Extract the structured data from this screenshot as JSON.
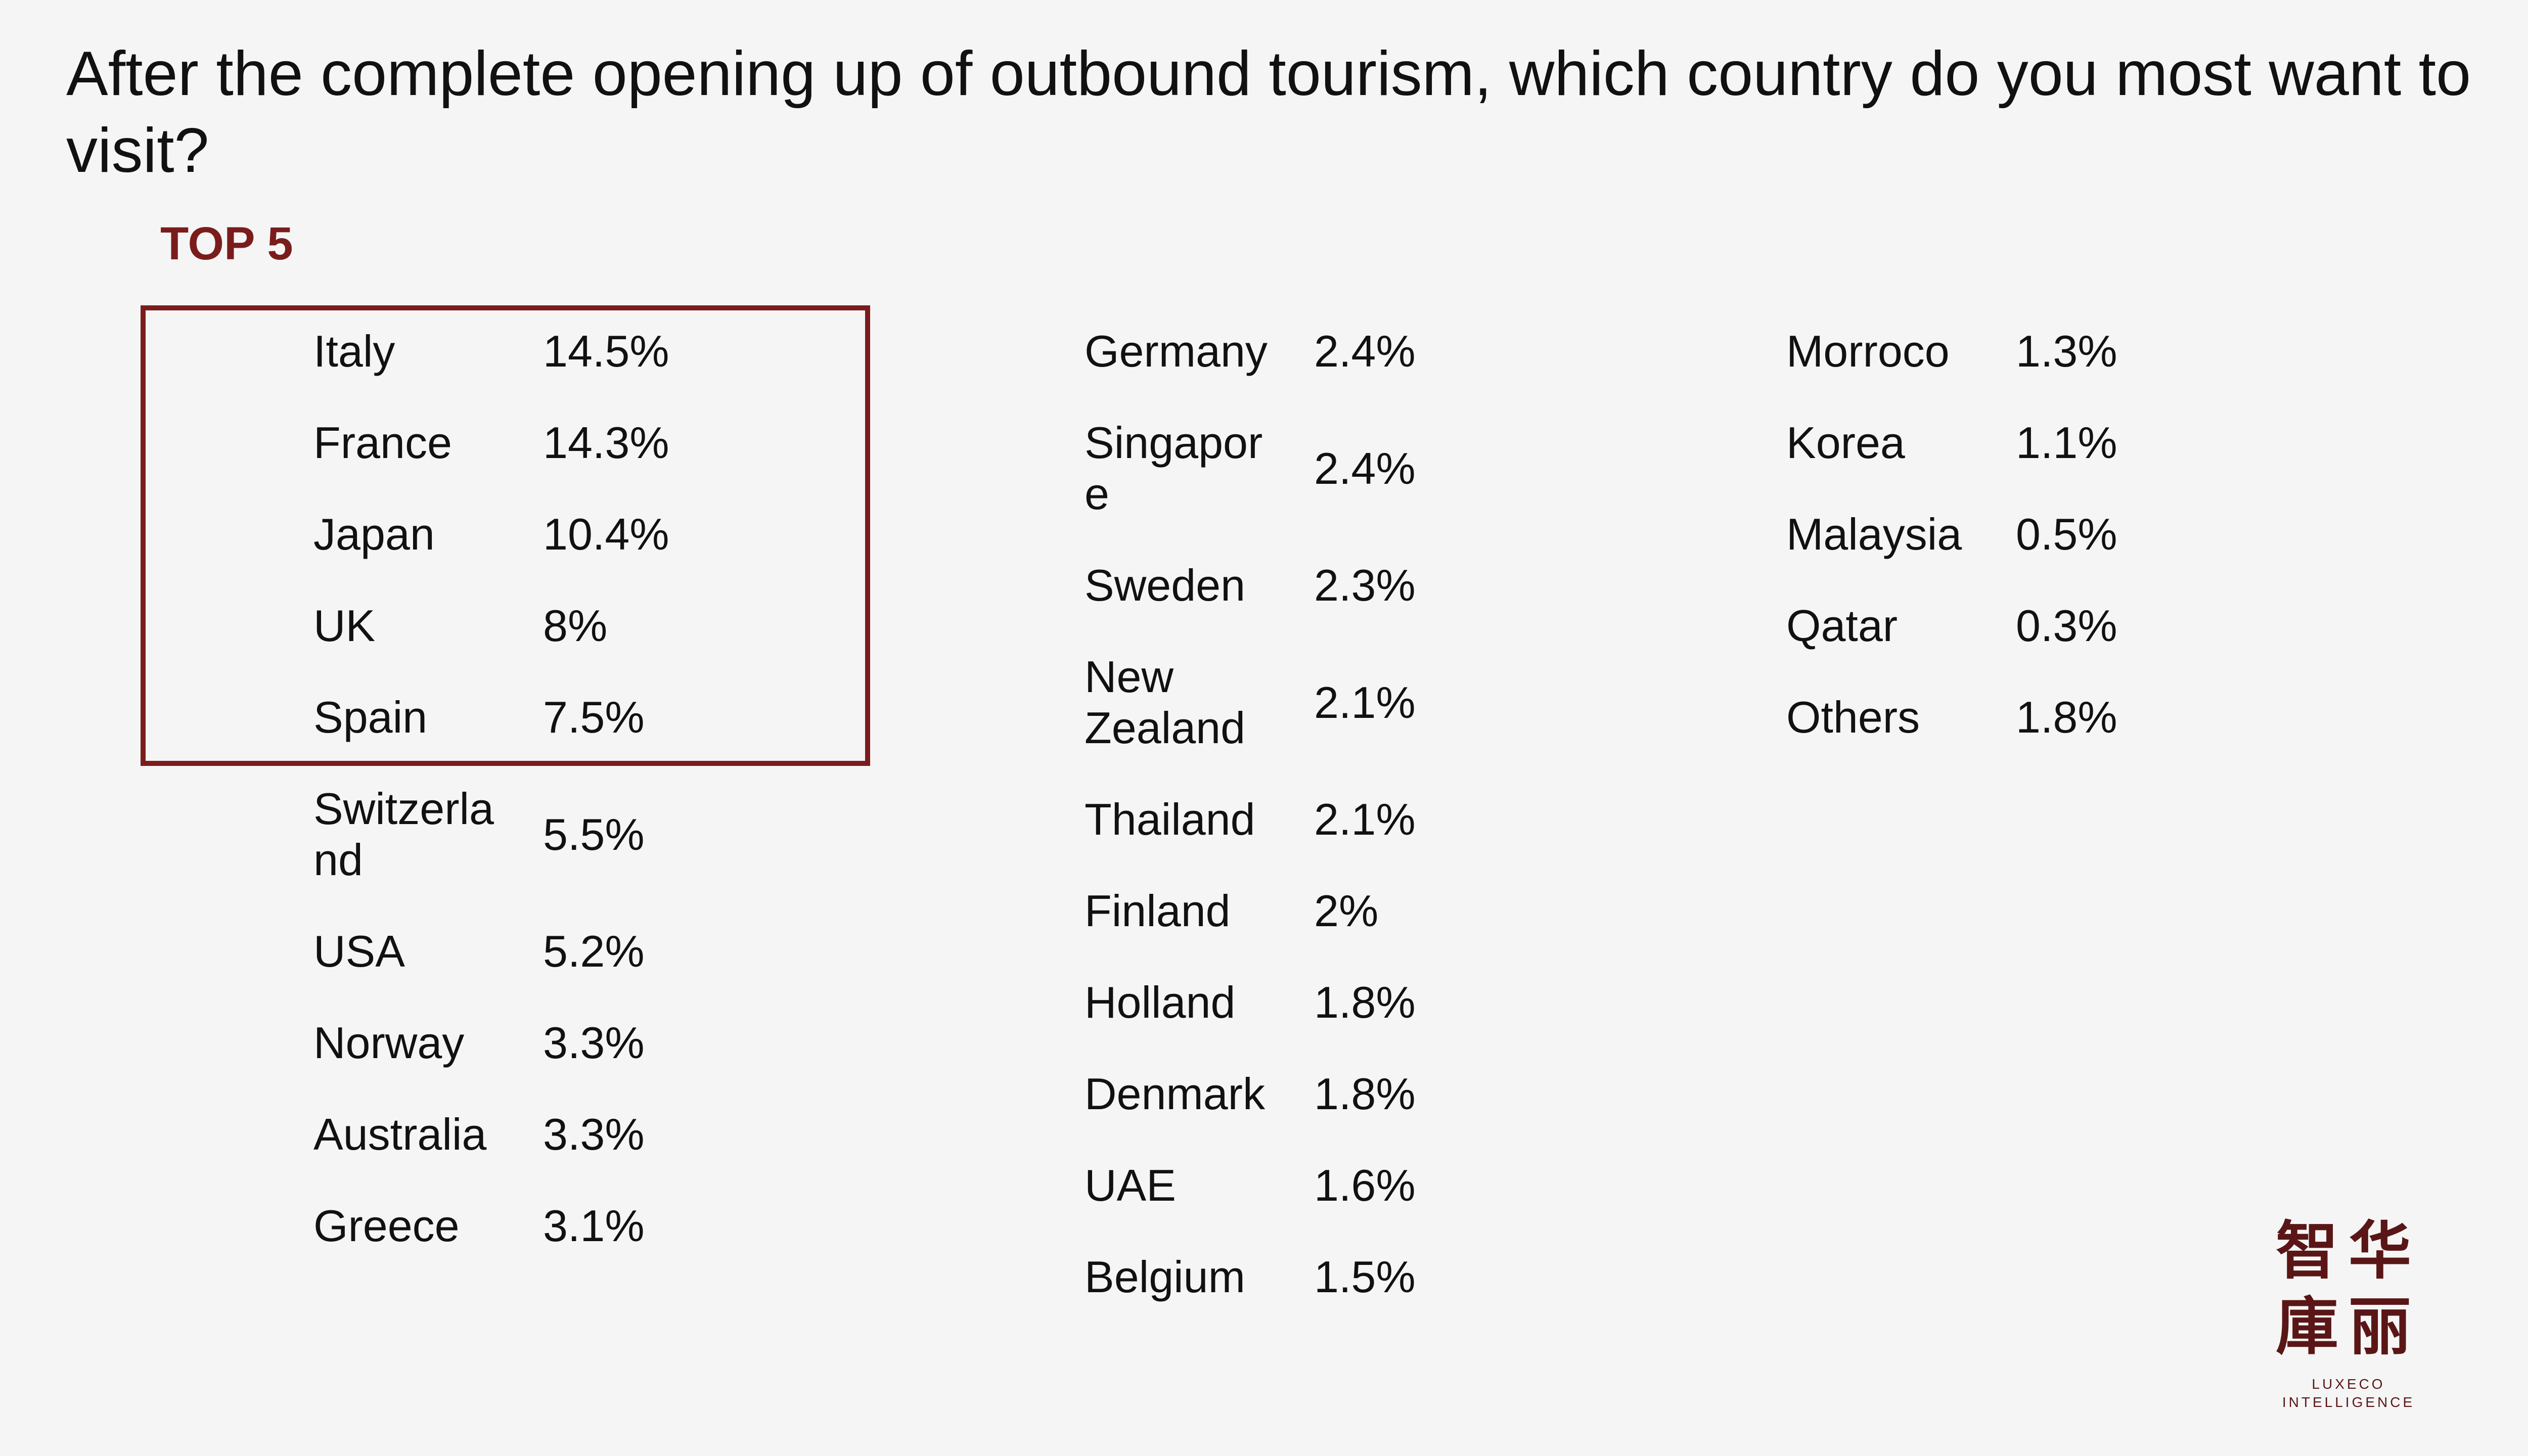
{
  "title": "After the complete opening up of outbound tourism, which country do you most want to visit?",
  "top_label": "TOP 5",
  "columns": [
    {
      "rows": [
        [
          "Italy",
          "14.5%"
        ],
        [
          "France",
          "14.3%"
        ],
        [
          "Japan",
          "10.4%"
        ],
        [
          "UK",
          "8%"
        ],
        [
          "Spain",
          "7.5%"
        ],
        [
          "Switzerland",
          "5.5%"
        ],
        [
          "USA",
          "5.2%"
        ],
        [
          "Norway",
          "3.3%"
        ],
        [
          "Australia",
          "3.3%"
        ],
        [
          "Greece",
          "3.1%"
        ]
      ]
    },
    {
      "rows": [
        [
          "Germany",
          "2.4%"
        ],
        [
          "Singapore",
          "2.4%"
        ],
        [
          "Sweden",
          "2.3%"
        ],
        [
          "New Zealand",
          "2.1%"
        ],
        [
          "Thailand",
          "2.1%"
        ],
        [
          "Finland",
          "2%"
        ],
        [
          "Holland",
          "1.8%"
        ],
        [
          "Denmark",
          "1.8%"
        ],
        [
          "UAE",
          "1.6%"
        ],
        [
          "Belgium",
          "1.5%"
        ]
      ]
    },
    {
      "rows": [
        [
          "Morroco",
          "1.3%"
        ],
        [
          "Korea",
          "1.1%"
        ],
        [
          "Malaysia",
          "0.5%"
        ],
        [
          "Qatar",
          "0.3%"
        ],
        [
          "Others",
          "1.8%"
        ]
      ]
    }
  ],
  "logo": {
    "line1": "智华",
    "line2": "庫丽",
    "line3": "LUXECO",
    "line4": "INTELLIGENCE"
  }
}
